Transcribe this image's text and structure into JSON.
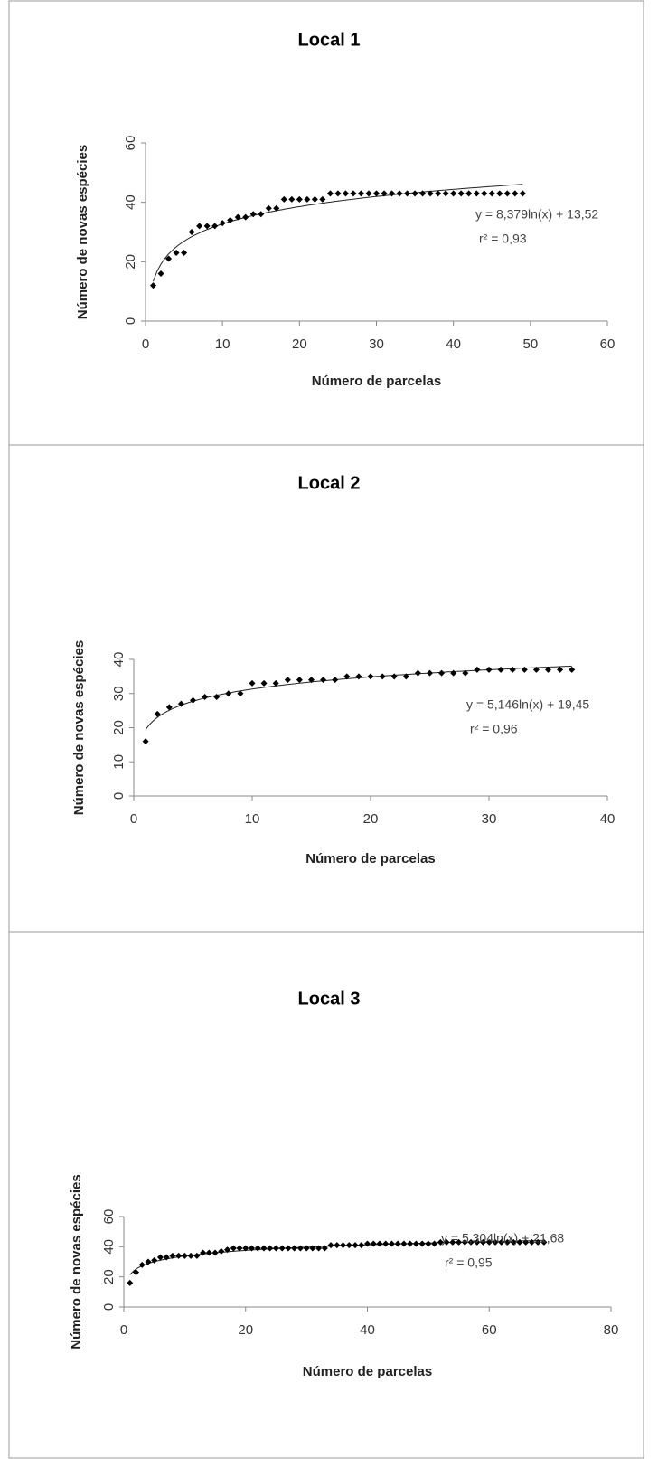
{
  "chart_data": [
    {
      "type": "scatter",
      "title": "Local 1",
      "x_label": "Número de parcelas",
      "y_label": "Número de novas espécies",
      "annotations": [
        "y = 8,379ln(x) + 13,52",
        "r² = 0,93"
      ],
      "trendline": "logarithmic",
      "color": "#000000",
      "x": [
        1,
        2,
        3,
        4,
        5,
        6,
        7,
        8,
        9,
        10,
        11,
        12,
        13,
        14,
        15,
        16,
        17,
        18,
        19,
        20,
        21,
        22,
        23,
        24,
        25,
        26,
        27,
        28,
        29,
        30,
        31,
        32,
        33,
        34,
        35,
        36,
        37,
        38,
        39,
        40,
        41,
        42,
        43,
        44,
        45,
        46,
        47,
        48,
        49
      ],
      "values": [
        12,
        16,
        21,
        23,
        23,
        30,
        32,
        32,
        32,
        33,
        34,
        35,
        35,
        36,
        36,
        38,
        38,
        41,
        41,
        41,
        41,
        41,
        41,
        43,
        43,
        43,
        43,
        43,
        43,
        43,
        43,
        43,
        43,
        43,
        43,
        43,
        43,
        43,
        43,
        43,
        43,
        43,
        43,
        43,
        43,
        43,
        43,
        43,
        43
      ],
      "xlim": [
        0,
        60
      ],
      "ylim": [
        0,
        60
      ],
      "xticks": [
        0,
        10,
        20,
        30,
        40,
        50,
        60
      ],
      "yticks": [
        0,
        20,
        40,
        60
      ]
    },
    {
      "type": "scatter",
      "title": "Local 2",
      "x_label": "Número de parcelas",
      "y_label": "Número de novas espécies",
      "annotations": [
        "y = 5,146ln(x) + 19,45",
        "r² = 0,96"
      ],
      "trendline": "logarithmic",
      "color": "#000000",
      "x": [
        1,
        2,
        3,
        4,
        5,
        6,
        7,
        8,
        9,
        10,
        11,
        12,
        13,
        14,
        15,
        16,
        17,
        18,
        19,
        20,
        21,
        22,
        23,
        24,
        25,
        26,
        27,
        28,
        29,
        30,
        31,
        32,
        33,
        34,
        35,
        36,
        37
      ],
      "values": [
        16,
        24,
        26,
        27,
        28,
        29,
        29,
        30,
        30,
        33,
        33,
        33,
        34,
        34,
        34,
        34,
        34,
        35,
        35,
        35,
        35,
        35,
        35,
        36,
        36,
        36,
        36,
        36,
        37,
        37,
        37,
        37,
        37,
        37,
        37,
        37,
        37
      ],
      "xlim": [
        0,
        40
      ],
      "ylim": [
        0,
        40
      ],
      "xticks": [
        0,
        10,
        20,
        30,
        40
      ],
      "yticks": [
        0,
        10,
        20,
        30,
        40
      ]
    },
    {
      "type": "scatter",
      "title": "Local 3",
      "x_label": "Número de parcelas",
      "y_label": "Número de novas espécies",
      "annotations": [
        "y = 5,304ln(x) + 21,68",
        "r² = 0,95"
      ],
      "trendline": "logarithmic",
      "color": "#000000",
      "x": [
        1,
        2,
        3,
        4,
        5,
        6,
        7,
        8,
        9,
        10,
        11,
        12,
        13,
        14,
        15,
        16,
        17,
        18,
        19,
        20,
        21,
        22,
        23,
        24,
        25,
        26,
        27,
        28,
        29,
        30,
        31,
        32,
        33,
        34,
        35,
        36,
        37,
        38,
        39,
        40,
        41,
        42,
        43,
        44,
        45,
        46,
        47,
        48,
        49,
        50,
        51,
        52,
        53,
        54,
        55,
        56,
        57,
        58,
        59,
        60,
        61,
        62,
        63,
        64,
        65,
        66,
        67,
        68,
        69
      ],
      "values": [
        16,
        23,
        28,
        30,
        31,
        33,
        33,
        34,
        34,
        34,
        34,
        34,
        36,
        36,
        36,
        37,
        38,
        39,
        39,
        39,
        39,
        39,
        39,
        39,
        39,
        39,
        39,
        39,
        39,
        39,
        39,
        39,
        39,
        41,
        41,
        41,
        41,
        41,
        41,
        42,
        42,
        42,
        42,
        42,
        42,
        42,
        42,
        42,
        42,
        42,
        42,
        43,
        43,
        43,
        43,
        43,
        43,
        43,
        43,
        43,
        43,
        43,
        43,
        43,
        43,
        43,
        43,
        43,
        43
      ],
      "xlim": [
        0,
        80
      ],
      "ylim": [
        0,
        60
      ],
      "xticks": [
        0,
        20,
        40,
        60,
        80
      ],
      "yticks": [
        0,
        20,
        40,
        60
      ]
    }
  ]
}
